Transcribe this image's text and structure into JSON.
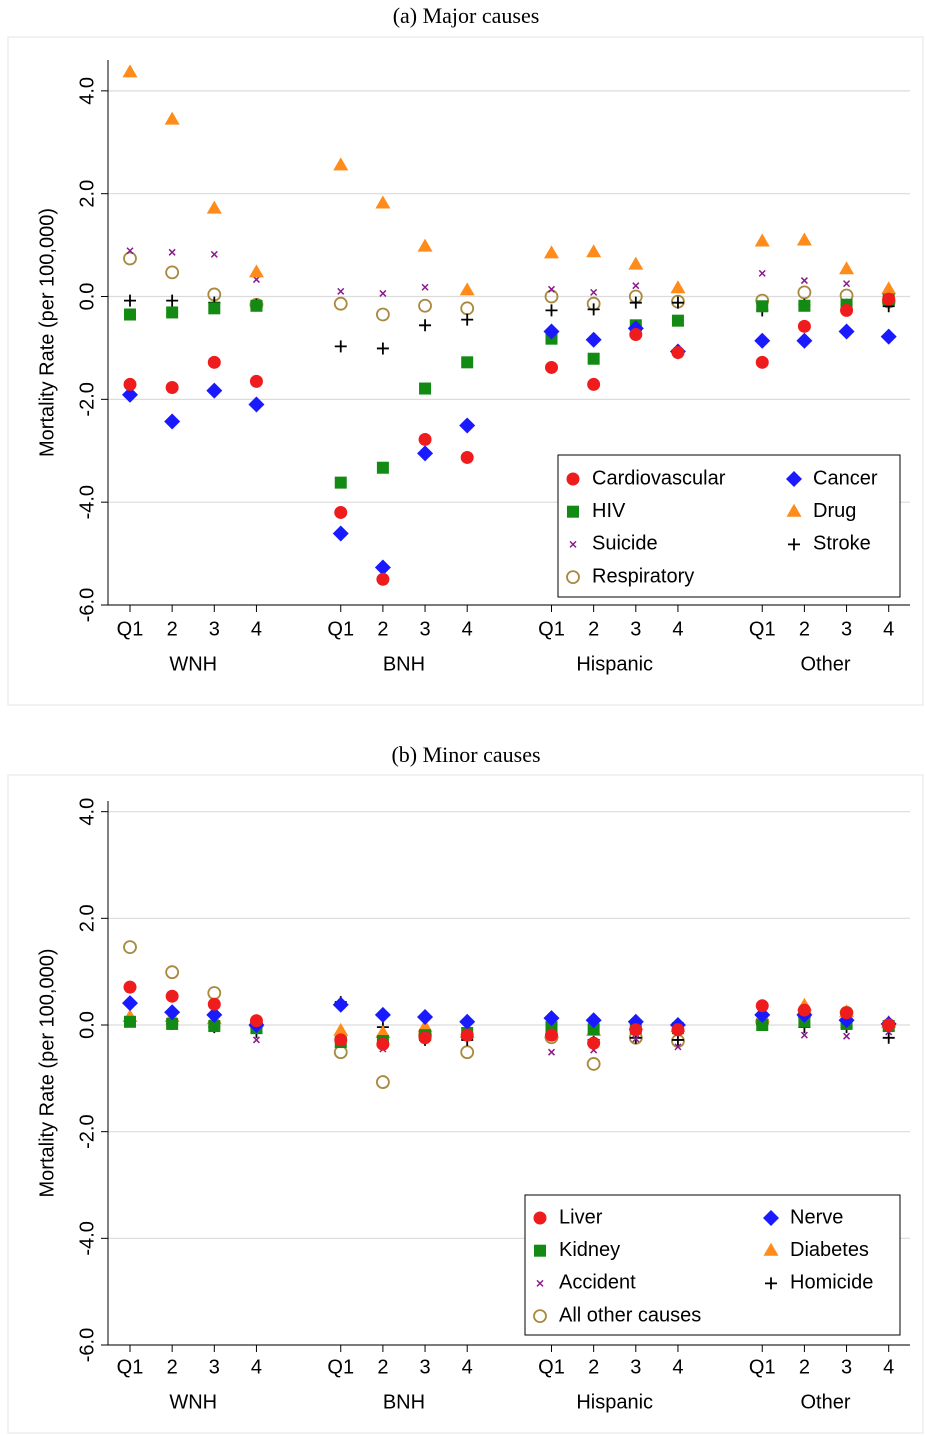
{
  "chart_data": [
    {
      "type": "scatter",
      "title": "(a) Major causes",
      "y_label": "Mortality Rate (per 100,000)",
      "categories": [
        "Q1",
        "2",
        "3",
        "4",
        "Q1",
        "2",
        "3",
        "4",
        "Q1",
        "2",
        "3",
        "4",
        "Q1",
        "2",
        "3",
        "4"
      ],
      "groups": [
        "WNH",
        "BNH",
        "Hispanic",
        "Other"
      ],
      "ylim": [
        -6,
        4.6
      ],
      "yticks": [
        {
          "value": -6,
          "label": "-6.0"
        },
        {
          "value": -4,
          "label": "-4.0"
        },
        {
          "value": -2,
          "label": "-2.0"
        },
        {
          "value": 0,
          "label": "0.0"
        },
        {
          "value": 2,
          "label": "2.0"
        },
        {
          "value": 4,
          "label": "4.0"
        }
      ],
      "grid": true,
      "legend": "lower right",
      "series": [
        {
          "name": "Cardiovascular",
          "color": "#ee1c1c",
          "marker": "circle",
          "values": [
            -1.71,
            -1.77,
            -1.28,
            -1.65,
            -4.2,
            -5.5,
            -2.78,
            -3.13,
            -1.38,
            -1.71,
            -0.74,
            -1.09,
            -1.28,
            -0.58,
            -0.27,
            -0.05
          ]
        },
        {
          "name": "Cancer",
          "color": "#1a1aff",
          "marker": "diamond",
          "values": [
            -1.91,
            -2.43,
            -1.83,
            -2.1,
            -4.61,
            -5.27,
            -3.05,
            -2.51,
            -0.68,
            -0.84,
            -0.62,
            -1.07,
            -0.86,
            -0.86,
            -0.68,
            -0.78
          ]
        },
        {
          "name": "HIV",
          "color": "#138a13",
          "marker": "square",
          "values": [
            -0.35,
            -0.31,
            -0.23,
            -0.18,
            -3.62,
            -3.33,
            -1.79,
            -1.28,
            -0.82,
            -1.21,
            -0.56,
            -0.47,
            -0.19,
            -0.18,
            -0.16,
            -0.06
          ]
        },
        {
          "name": "Drug",
          "color": "#ff8c1a",
          "marker": "triangle",
          "values": [
            4.36,
            3.44,
            1.71,
            0.47,
            2.55,
            1.81,
            0.97,
            0.12,
            0.84,
            0.86,
            0.62,
            0.16,
            1.07,
            1.09,
            0.53,
            0.14
          ]
        },
        {
          "name": "Suicide",
          "color": "#8b1a8b",
          "marker": "x",
          "values": [
            0.89,
            0.86,
            0.82,
            0.33,
            0.1,
            0.06,
            0.18,
            0.1,
            0.14,
            0.08,
            0.21,
            0.14,
            0.45,
            0.31,
            0.25,
            0.08
          ]
        },
        {
          "name": "Stroke",
          "color": "#000000",
          "marker": "plus",
          "values": [
            -0.08,
            -0.08,
            -0.12,
            -0.16,
            -0.97,
            -1.01,
            -0.56,
            -0.45,
            -0.27,
            -0.25,
            -0.12,
            -0.12,
            -0.27,
            -0.16,
            -0.16,
            -0.19
          ]
        },
        {
          "name": "Respiratory",
          "color": "#a8893f",
          "marker": "hollow-circle",
          "values": [
            0.74,
            0.47,
            0.04,
            -0.16,
            -0.14,
            -0.35,
            -0.18,
            -0.23,
            0.0,
            -0.14,
            0.0,
            -0.1,
            -0.08,
            0.08,
            0.02,
            -0.1
          ]
        }
      ]
    },
    {
      "type": "scatter",
      "title": "(b) Minor causes",
      "y_label": "Mortality Rate (per 100,000)",
      "categories": [
        "Q1",
        "2",
        "3",
        "4",
        "Q1",
        "2",
        "3",
        "4",
        "Q1",
        "2",
        "3",
        "4",
        "Q1",
        "2",
        "3",
        "4"
      ],
      "groups": [
        "WNH",
        "BNH",
        "Hispanic",
        "Other"
      ],
      "ylim": [
        -6,
        4.2
      ],
      "yticks": [
        {
          "value": -6,
          "label": "-6.0"
        },
        {
          "value": -4,
          "label": "-4.0"
        },
        {
          "value": -2,
          "label": "-2.0"
        },
        {
          "value": 0,
          "label": "0.0"
        },
        {
          "value": 2,
          "label": "2.0"
        },
        {
          "value": 4,
          "label": "4.0"
        }
      ],
      "grid": true,
      "legend": "lower right",
      "series": [
        {
          "name": "Liver",
          "color": "#ee1c1c",
          "marker": "circle",
          "values": [
            0.71,
            0.54,
            0.39,
            0.08,
            -0.28,
            -0.36,
            -0.24,
            -0.19,
            -0.19,
            -0.34,
            -0.09,
            -0.09,
            0.36,
            0.28,
            0.23,
            0.0
          ]
        },
        {
          "name": "Nerve",
          "color": "#1a1aff",
          "marker": "diamond",
          "values": [
            0.41,
            0.24,
            0.19,
            0.0,
            0.38,
            0.19,
            0.15,
            0.06,
            0.13,
            0.09,
            0.06,
            0.0,
            0.19,
            0.19,
            0.09,
            0.02
          ]
        },
        {
          "name": "Kidney",
          "color": "#138a13",
          "marker": "square",
          "values": [
            0.06,
            0.02,
            -0.02,
            -0.06,
            -0.32,
            -0.3,
            -0.19,
            -0.15,
            -0.04,
            -0.08,
            -0.06,
            -0.06,
            0.0,
            0.06,
            0.02,
            -0.02
          ]
        },
        {
          "name": "Diabetes",
          "color": "#ff8c1a",
          "marker": "triangle",
          "values": [
            0.15,
            0.15,
            0.11,
            0.06,
            -0.11,
            -0.15,
            -0.04,
            -0.15,
            -0.15,
            -0.11,
            0.0,
            -0.04,
            0.15,
            0.36,
            0.24,
            0.04
          ]
        },
        {
          "name": "Accident",
          "color": "#8b1a8b",
          "marker": "x",
          "values": [
            0.13,
            0.06,
            0.02,
            -0.28,
            -0.19,
            -0.45,
            -0.28,
            -0.24,
            -0.51,
            -0.47,
            -0.26,
            -0.41,
            0.0,
            -0.19,
            -0.21,
            -0.13
          ]
        },
        {
          "name": "Homicide",
          "color": "#000000",
          "marker": "plus",
          "values": [
            0.08,
            0.02,
            -0.04,
            -0.13,
            0.43,
            -0.04,
            -0.28,
            -0.28,
            -0.19,
            -0.28,
            -0.24,
            -0.28,
            0.02,
            -0.04,
            -0.04,
            -0.24
          ]
        },
        {
          "name": "All other causes",
          "color": "#a8893f",
          "marker": "hollow-circle",
          "values": [
            1.46,
            0.99,
            0.6,
            0.0,
            -0.51,
            -1.07,
            -0.19,
            -0.51,
            -0.23,
            -0.73,
            -0.24,
            -0.3,
            0.06,
            0.19,
            0.23,
            0.0
          ]
        }
      ]
    }
  ]
}
